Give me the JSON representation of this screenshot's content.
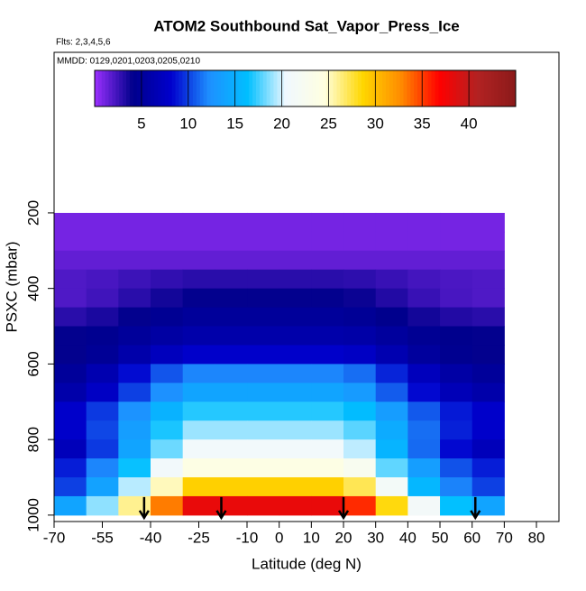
{
  "chart_data": {
    "type": "heatmap",
    "title": "ATOM2 Southbound Sat_Vapor_Press_Ice",
    "subtitle": "Flts: 2,3,4,5,6",
    "annotation": "MMDD: 0129,0201,0203,0205,0210",
    "xlabel": "Latitude (deg N)",
    "ylabel": "PSXC (mbar)",
    "xlim": [
      -70,
      87
    ],
    "ylim": [
      1017,
      -225
    ],
    "xticks": [
      -70,
      -55,
      -40,
      -25,
      -10,
      0,
      10,
      20,
      30,
      40,
      50,
      60,
      70,
      80
    ],
    "yticks": [
      200,
      400,
      600,
      800,
      1000
    ],
    "x_edges": [
      -70,
      -60,
      -50,
      -40,
      -30,
      -20,
      -10,
      0,
      10,
      20,
      30,
      40,
      50,
      60,
      70
    ],
    "y_edges": [
      200,
      250,
      300,
      350,
      400,
      450,
      500,
      550,
      600,
      650,
      700,
      750,
      800,
      850,
      900,
      950,
      1000
    ],
    "values": [
      [
        1,
        1,
        1,
        1,
        1,
        1,
        1,
        1,
        1,
        1,
        1,
        1,
        1,
        1
      ],
      [
        1,
        1,
        1,
        1,
        1,
        1,
        1,
        1,
        1,
        1,
        1,
        1,
        1,
        1
      ],
      [
        1.5,
        1.5,
        1.5,
        1.5,
        1.5,
        1.5,
        1.5,
        1.5,
        1.5,
        1.5,
        1.5,
        1.5,
        1.5,
        1.5
      ],
      [
        2,
        2.2,
        2.5,
        2.8,
        3,
        3,
        3,
        3,
        3,
        2.9,
        2.6,
        2.3,
        2.1,
        2
      ],
      [
        2,
        2.4,
        3,
        3.6,
        4,
        4,
        4,
        4,
        4,
        3.8,
        3.2,
        2.6,
        2.2,
        2
      ],
      [
        3,
        3.4,
        4,
        4.6,
        5,
        5,
        5,
        5,
        5,
        4.8,
        4.2,
        3.6,
        3.2,
        3
      ],
      [
        4,
        4.4,
        5,
        5.6,
        6,
        6,
        6,
        6,
        6,
        5.8,
        5.2,
        4.6,
        4.2,
        4
      ],
      [
        4,
        4.8,
        6,
        7.2,
        8,
        8,
        8,
        8,
        8,
        7.6,
        6.4,
        5.2,
        4.4,
        4
      ],
      [
        5,
        6.4,
        8.5,
        10.6,
        12,
        12,
        12,
        12,
        12,
        11.3,
        9.2,
        7.1,
        5.7,
        5
      ],
      [
        6,
        7.6,
        10,
        12.4,
        14,
        14,
        14,
        14,
        14,
        13.2,
        10.8,
        8.4,
        6.8,
        6
      ],
      [
        8,
        9.8,
        12.5,
        15.2,
        17,
        17,
        17,
        17,
        17,
        16.1,
        13.4,
        10.7,
        8.9,
        8
      ],
      [
        8,
        10.2,
        13.5,
        16.8,
        19,
        19,
        19,
        19,
        19,
        17.9,
        14.6,
        11.3,
        9.1,
        8
      ],
      [
        7,
        9.8,
        14,
        18.2,
        21,
        21,
        21,
        21,
        21,
        19.6,
        15.4,
        11.2,
        8.4,
        7
      ],
      [
        9,
        12,
        16.5,
        21,
        24,
        24,
        24,
        24,
        24,
        22.5,
        18,
        13.5,
        10.5,
        9
      ],
      [
        10,
        13.8,
        19.5,
        25.2,
        29,
        29,
        29,
        29,
        29,
        27.1,
        21.4,
        15.7,
        11.9,
        10
      ],
      [
        14,
        18.8,
        26,
        33.2,
        38,
        38,
        38,
        38,
        38,
        35.6,
        28.4,
        21.2,
        16.4,
        14
      ]
    ],
    "clim": [
      0,
      45
    ],
    "cticks": [
      5,
      10,
      15,
      20,
      25,
      30,
      35,
      40
    ],
    "colors": [
      "#9b30ff",
      "#00008b",
      "#0000cd",
      "#1e90ff",
      "#00bfff",
      "#f0f8ff",
      "#ffffe0",
      "#ffd700",
      "#ff8c00",
      "#ff0000",
      "#b22222",
      "#8b1a1a"
    ],
    "arrows_lat": [
      -42,
      -18,
      20,
      61
    ]
  }
}
